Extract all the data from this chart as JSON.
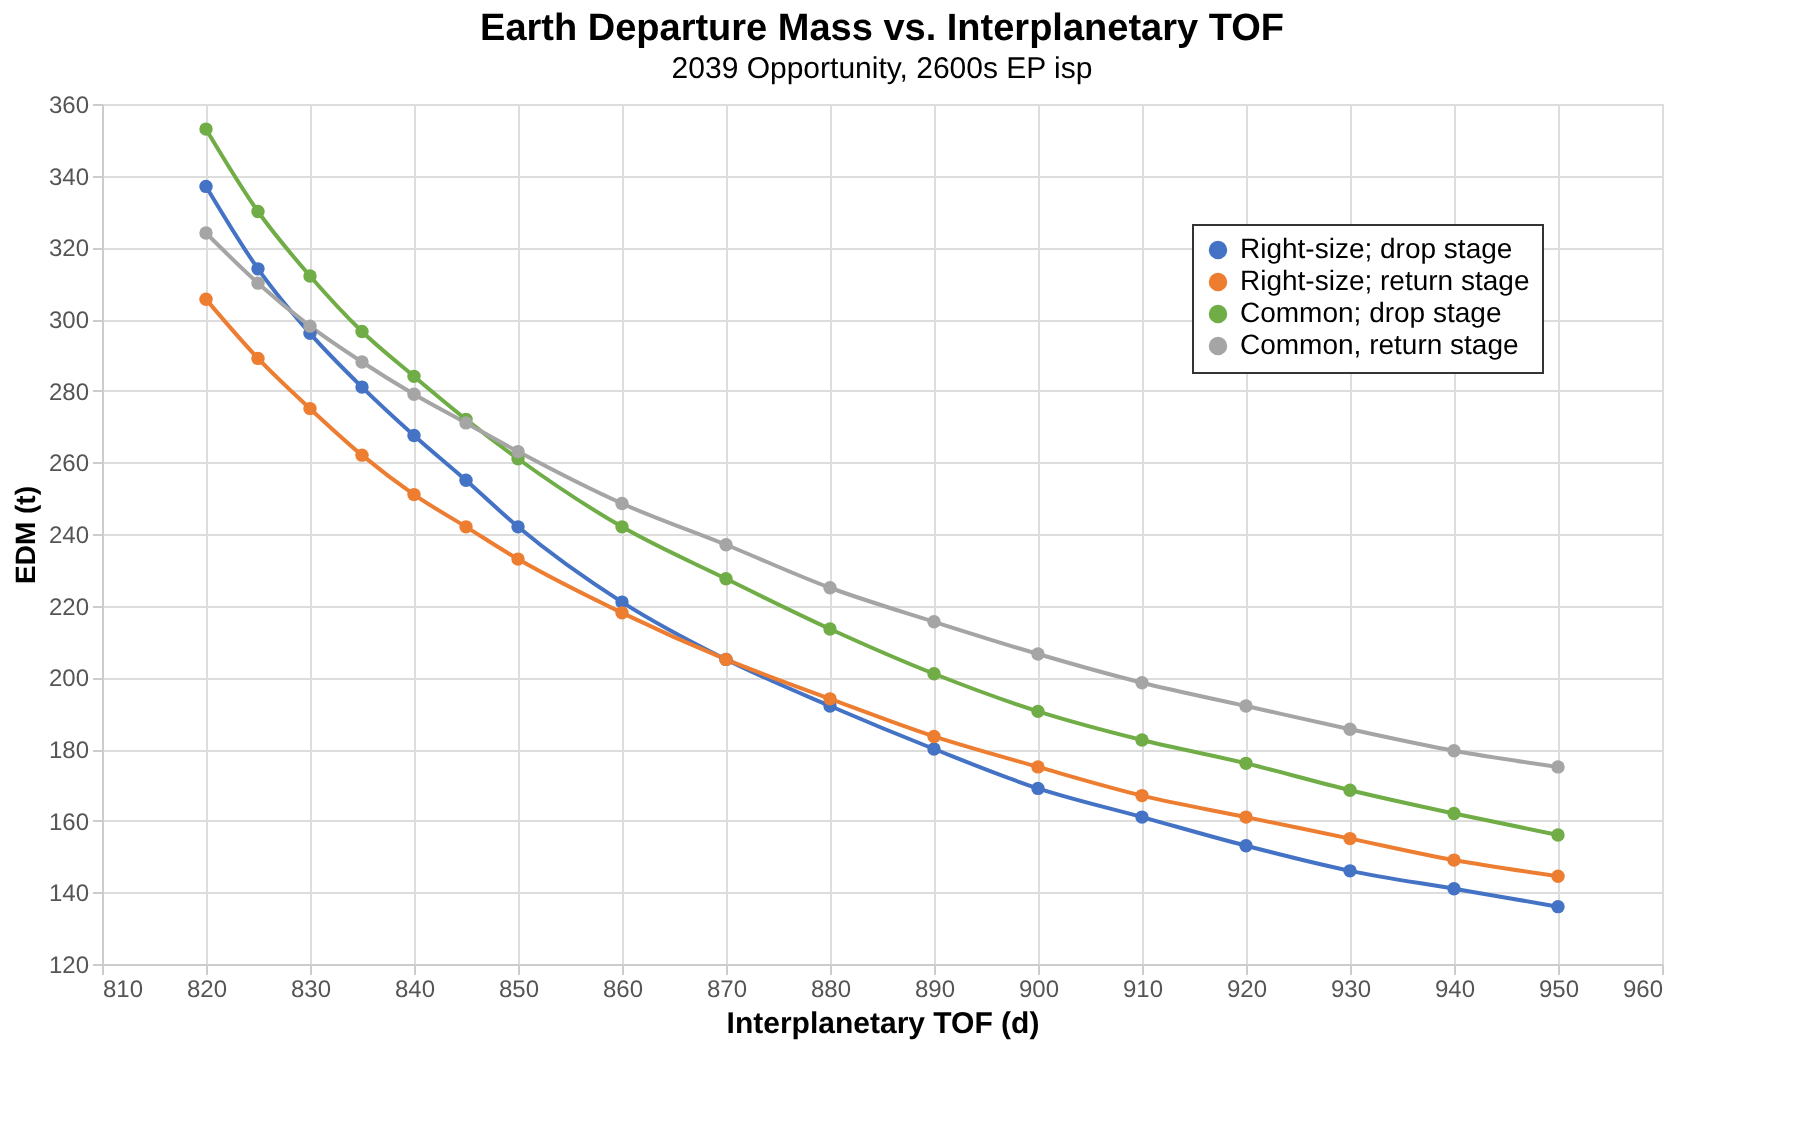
{
  "chart_data": {
    "type": "line",
    "title": "Earth Departure Mass vs. Interplanetary TOF",
    "subtitle": "2039 Opportunity, 2600s EP isp",
    "xlabel": "Interplanetary TOF (d)",
    "ylabel": "EDM (t)",
    "x": [
      820,
      825,
      830,
      835,
      840,
      845,
      850,
      860,
      870,
      880,
      890,
      900,
      910,
      920,
      930,
      940,
      950
    ],
    "series": [
      {
        "name": "Right-size; drop stage",
        "color": "#4472c4",
        "values": [
          337,
          314,
          296,
          281,
          267.5,
          255,
          242,
          221,
          205,
          192,
          180,
          169,
          161,
          153,
          146,
          141,
          136
        ]
      },
      {
        "name": "Right-size; return stage",
        "color": "#ed7d31",
        "values": [
          305.5,
          289,
          275,
          262,
          251,
          242,
          233,
          218,
          205,
          194,
          183.5,
          175,
          167,
          161,
          155,
          149,
          144.5
        ]
      },
      {
        "name": "Common; drop stage",
        "color": "#70ad47",
        "values": [
          353,
          330,
          312,
          296.5,
          284,
          272,
          261,
          242,
          227.5,
          213.5,
          201,
          190.5,
          182.5,
          176,
          168.5,
          162,
          156
        ]
      },
      {
        "name": "Common, return stage",
        "color": "#a5a5a5",
        "values": [
          324,
          310,
          298,
          288,
          279,
          271,
          263,
          248.5,
          237,
          225,
          215.5,
          206.5,
          198.5,
          192,
          185.5,
          179.5,
          175
        ]
      }
    ],
    "xlim": [
      810,
      960
    ],
    "xticks": [
      810,
      820,
      830,
      840,
      850,
      860,
      870,
      880,
      890,
      900,
      910,
      920,
      930,
      940,
      950,
      960
    ],
    "ylim": [
      120,
      360
    ],
    "yticks": [
      120,
      140,
      160,
      180,
      200,
      220,
      240,
      260,
      280,
      300,
      320,
      340,
      360
    ],
    "grid": true,
    "legend": "top right",
    "marker": "circle",
    "line_style": "solid"
  }
}
